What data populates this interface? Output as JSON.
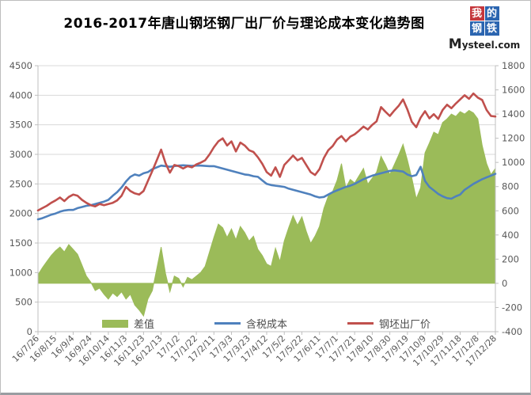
{
  "title": "2016-2017年唐山钢坯钢厂出厂价与理论成本变化趋势图",
  "logo": {
    "squares": [
      "我",
      "的",
      "钢",
      "铁"
    ],
    "square_colors": [
      "#c5373c",
      "#2b65b0",
      "#2b65b0",
      "#2b65b0"
    ],
    "domain": "Mysteel.com"
  },
  "chart_data": {
    "type": "line",
    "subtype": "combo-area-and-lines",
    "title": "2016-2017年唐山钢坯钢厂出厂价与理论成本变化趋势图",
    "x_start": "16/7/26",
    "x_end": "17/12/28",
    "x_step_days": 5,
    "x_points_per_tick": 4,
    "x_tick_labels": [
      "16/7/26",
      "16/8/15",
      "16/9/4",
      "16/9/24",
      "16/10/14",
      "16/11/3",
      "16/11/23",
      "16/12/13",
      "17/1/2",
      "17/1/22",
      "17/2/11",
      "17/3/3",
      "17/3/23",
      "17/4/12",
      "17/5/2",
      "17/5/22",
      "17/6/11",
      "17/7/1",
      "17/7/21",
      "17/8/10",
      "17/8/30",
      "17/9/19",
      "17/10/9",
      "17/10/29",
      "17/11/18",
      "17/12/8",
      "17/12/28"
    ],
    "left_axis": {
      "min": 0,
      "max": 4500,
      "step": 500,
      "ticks": [
        0,
        500,
        1000,
        1500,
        2000,
        2500,
        3000,
        3500,
        4000,
        4500
      ]
    },
    "right_axis": {
      "min": -400,
      "max": 1800,
      "step": 200,
      "ticks": [
        -400,
        -200,
        0,
        200,
        400,
        600,
        800,
        1000,
        1200,
        1400,
        1600,
        1800
      ]
    },
    "grid": true,
    "legend_position": "bottom",
    "style": {
      "grid_color": "#d9d9d9",
      "axis_color": "#bfbfbf",
      "label_color": "#595959",
      "background": "#ffffff"
    },
    "series": [
      {
        "name": "差值",
        "kind": "area",
        "axis": "right",
        "color": "#9bbb59",
        "values": [
          70,
          130,
          180,
          230,
          270,
          300,
          260,
          320,
          280,
          240,
          150,
          60,
          10,
          -60,
          -40,
          -90,
          -130,
          -80,
          -110,
          -70,
          -130,
          -90,
          -180,
          -220,
          -270,
          -130,
          -60,
          120,
          300,
          80,
          -70,
          60,
          40,
          -30,
          50,
          30,
          60,
          90,
          140,
          260,
          380,
          490,
          460,
          380,
          450,
          360,
          470,
          420,
          350,
          390,
          280,
          230,
          160,
          140,
          290,
          180,
          350,
          460,
          560,
          480,
          550,
          430,
          330,
          390,
          470,
          620,
          720,
          760,
          850,
          990,
          790,
          860,
          830,
          890,
          950,
          820,
          870,
          920,
          1050,
          980,
          900,
          980,
          1060,
          1150,
          1020,
          870,
          700,
          790,
          1080,
          1160,
          1250,
          1230,
          1330,
          1360,
          1400,
          1380,
          1420,
          1400,
          1430,
          1410,
          1360,
          1140,
          990,
          900,
          950
        ]
      },
      {
        "name": "含税成本",
        "kind": "line",
        "axis": "left",
        "color": "#4f81bd",
        "values": [
          1900,
          1920,
          1950,
          1980,
          2000,
          2030,
          2050,
          2060,
          2060,
          2090,
          2110,
          2130,
          2140,
          2160,
          2180,
          2200,
          2230,
          2300,
          2360,
          2440,
          2540,
          2620,
          2660,
          2640,
          2680,
          2700,
          2750,
          2780,
          2810,
          2800,
          2790,
          2800,
          2810,
          2815,
          2810,
          2805,
          2810,
          2810,
          2805,
          2800,
          2800,
          2780,
          2760,
          2740,
          2720,
          2700,
          2680,
          2660,
          2650,
          2630,
          2620,
          2560,
          2500,
          2480,
          2470,
          2460,
          2450,
          2420,
          2400,
          2380,
          2360,
          2340,
          2320,
          2290,
          2270,
          2280,
          2320,
          2360,
          2390,
          2420,
          2450,
          2470,
          2500,
          2540,
          2580,
          2610,
          2640,
          2660,
          2680,
          2700,
          2720,
          2730,
          2720,
          2710,
          2660,
          2630,
          2650,
          2790,
          2550,
          2450,
          2390,
          2330,
          2290,
          2260,
          2250,
          2290,
          2320,
          2400,
          2450,
          2500,
          2540,
          2580,
          2610,
          2640,
          2670
        ]
      },
      {
        "name": "钢坯出厂价",
        "kind": "line",
        "axis": "left",
        "color": "#c0504d",
        "values": [
          2050,
          2090,
          2130,
          2180,
          2220,
          2270,
          2210,
          2280,
          2320,
          2300,
          2230,
          2180,
          2140,
          2120,
          2160,
          2140,
          2160,
          2180,
          2220,
          2300,
          2450,
          2380,
          2340,
          2320,
          2380,
          2550,
          2720,
          2900,
          3080,
          2850,
          2690,
          2820,
          2800,
          2760,
          2800,
          2780,
          2830,
          2860,
          2900,
          3000,
          3120,
          3220,
          3270,
          3150,
          3220,
          3050,
          3200,
          3150,
          3070,
          3040,
          2950,
          2840,
          2700,
          2640,
          2780,
          2620,
          2820,
          2900,
          2980,
          2900,
          2940,
          2820,
          2700,
          2650,
          2750,
          2940,
          3070,
          3140,
          3250,
          3310,
          3220,
          3300,
          3340,
          3400,
          3470,
          3420,
          3500,
          3560,
          3800,
          3720,
          3650,
          3740,
          3820,
          3930,
          3760,
          3550,
          3460,
          3620,
          3730,
          3610,
          3680,
          3600,
          3750,
          3840,
          3780,
          3860,
          3930,
          4000,
          3940,
          4030,
          3960,
          3920,
          3750,
          3650,
          3640
        ]
      }
    ]
  }
}
